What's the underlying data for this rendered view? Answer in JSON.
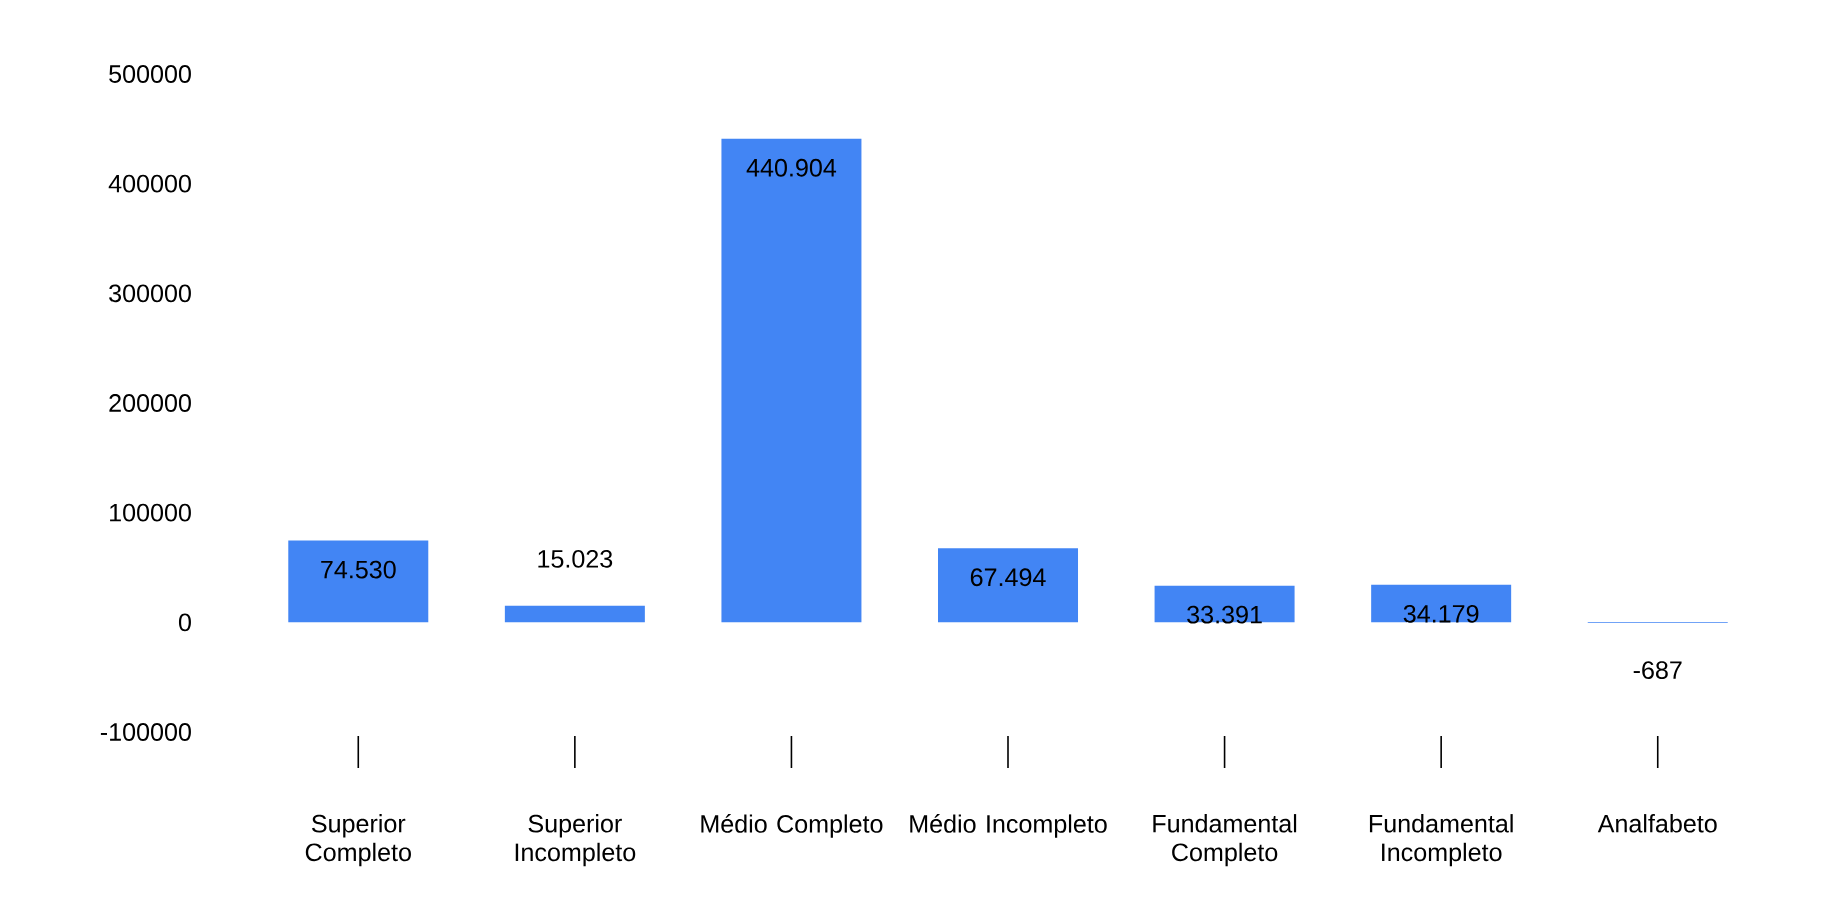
{
  "chart_data": {
    "type": "bar",
    "categories": [
      "Superior Completo",
      "Superior Incompleto",
      "Médio Completo",
      "Médio Incompleto",
      "Fundamental Completo",
      "Fundamental Incompleto",
      "Analfabeto"
    ],
    "values": [
      74530,
      15023,
      440904,
      67494,
      33391,
      34179,
      -687
    ],
    "value_labels": [
      "74.530",
      "15.023",
      "440.904",
      "67.494",
      "33.391",
      "34.179",
      "-687"
    ],
    "color": "#4285f4",
    "ylim": [
      -100000,
      500000
    ],
    "yticks": [
      -100000,
      0,
      100000,
      200000,
      300000,
      400000,
      500000
    ],
    "grid": false
  }
}
